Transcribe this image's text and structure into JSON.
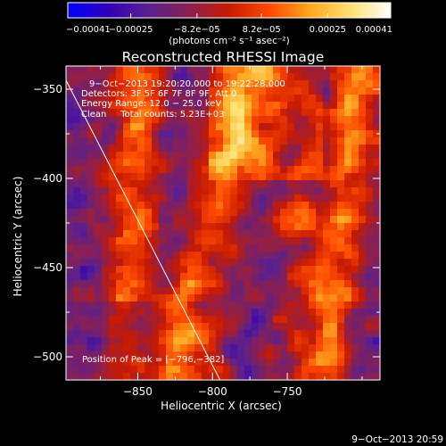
{
  "chart_data": {
    "type": "heatmap",
    "title": "Reconstructed RHESSI Image",
    "xlabel": "Heliocentric X (arcsec)",
    "ylabel": "Heliocentric Y (arcsec)",
    "xlim": [
      -898,
      -688
    ],
    "ylim": [
      -513,
      -337
    ],
    "x_ticks": [
      -850,
      -800,
      -750
    ],
    "x_tick_labels": [
      "−850",
      "−800",
      "−750"
    ],
    "y_ticks": [
      -350,
      -400,
      -450,
      -500
    ],
    "y_tick_labels": [
      "−350",
      "−400",
      "−450",
      "−500"
    ],
    "colorbar": {
      "min": -0.00041,
      "max": 0.00041,
      "ticks": [
        -0.00041,
        -0.00025,
        -8.2e-05,
        8.2e-05,
        0.00025,
        0.00041
      ],
      "tick_labels": [
        "−0.00041",
        "−0.00025",
        "−8.2e−05",
        "8.2e−05",
        "0.00025",
        "0.00041"
      ],
      "units": "(photons cm⁻² s⁻¹ asec⁻²)",
      "colors": [
        "#0000ff",
        "#3000b8",
        "#5a2090",
        "#8a2050",
        "#c81a00",
        "#ff4a00",
        "#ffa820",
        "#ffe070",
        "#ffffff"
      ]
    },
    "annotations": [
      "9−Oct−2013 19:20:20.000 to 19:22:28.000",
      "Detectors: 3F 5F 6F 7F 8F 9F, Att 0",
      "Energy Range: 12.0 − 25.0 keV",
      "Clean     Total counts: 5.23E+03"
    ],
    "peak_label": "Position of Peak = [−796,−382]",
    "peak": [
      -796,
      -382
    ],
    "limb_line": [
      [
        -898,
        -345
      ],
      [
        -795,
        -513
      ]
    ]
  },
  "footer_date": "9−Oct−2013 20:59"
}
